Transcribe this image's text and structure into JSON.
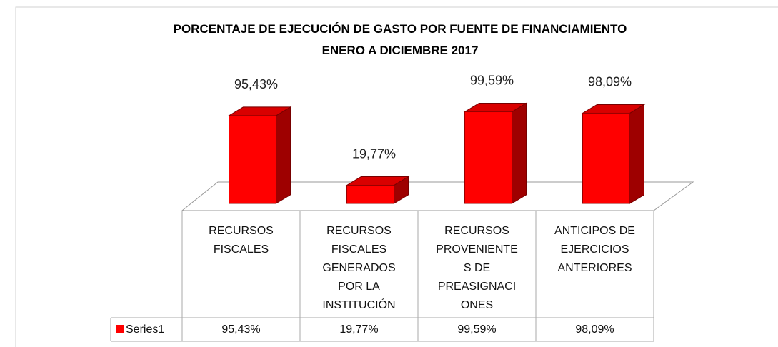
{
  "chart_data": {
    "type": "bar3d",
    "title": "PORCENTAJE DE EJECUCIÓN DE GASTO POR FUENTE DE FINANCIAMIENTO",
    "subtitle": "ENERO A DICIEMBRE 2017",
    "categories": [
      "RECURSOS FISCALES",
      "RECURSOS FISCALES GENERADOS POR LA INSTITUCIÓN",
      "RECURSOS PROVENIENTES DE PREASIGNACIONES",
      "ANTICIPOS DE EJERCICIOS ANTERIORES"
    ],
    "series": [
      {
        "name": "Series1",
        "color": "#ff0000",
        "values": [
          95.43,
          19.77,
          99.59,
          98.09
        ],
        "value_labels": [
          "95,43%",
          "19,77%",
          "99,59%",
          "98,09%"
        ]
      }
    ],
    "ylim": [
      0,
      100
    ],
    "data_table": true
  }
}
